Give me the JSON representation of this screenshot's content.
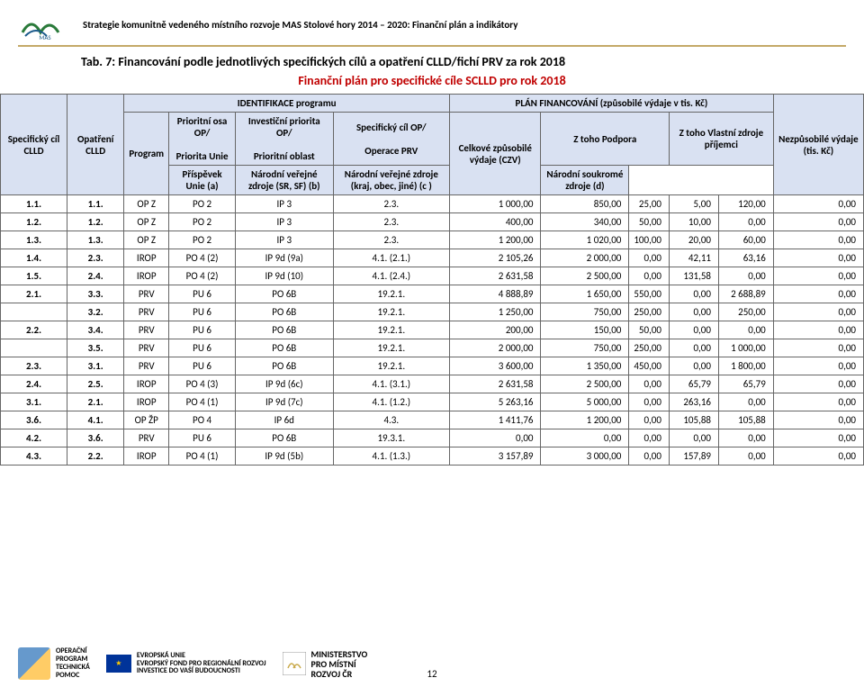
{
  "header": {
    "title_text": "Strategie komunitně vedeného místního rozvoje MAS Stolové hory 2014 – 2020: Finanční plán a indikátory"
  },
  "title": "Tab. 7: Financování podle jednotlivých specifických cílů a opatření CLLD/fichí PRV za rok 2018",
  "subtitle": "Finanční plán pro specifické cíle SCLLD pro rok 2018",
  "th": {
    "ident": "IDENTIFIKACE programu",
    "plan": "PLÁN FINANCOVÁNÍ (způsobilé výdaje v tis. Kč)",
    "sc": "Specifický cíl CLLD",
    "op": "Opatření CLLD",
    "prog": "Program",
    "posa": "Prioritní osa OP/",
    "prio": "Priorita Unie",
    "inv": "Investiční priorita OP/",
    "pobl": "Prioritní oblast",
    "spc": "Specifický cíl OP/",
    "oprv": "Operace PRV",
    "czv": "Celkové způsobilé výdaje (CZV)",
    "zpod": "Z toho Podpora",
    "zvlast": "Z toho Vlastní zdroje příjemci",
    "ua": "Příspěvek Unie (a)",
    "nvz": "Národní veřejné zdroje (SR, SF) (b)",
    "nvk": "Národní veřejné zdroje (kraj, obec, jiné) (c )",
    "nsz": "Národní soukromé zdroje (d)",
    "nez": "Nezpůsobilé výdaje (tis. Kč)"
  },
  "rows": [
    [
      "1.1.",
      "1.1.",
      "OP Z",
      "PO 2",
      "IP 3",
      "2.3.",
      "1 000,00",
      "850,00",
      "25,00",
      "5,00",
      "120,00",
      "0,00"
    ],
    [
      "1.2.",
      "1.2.",
      "OP Z",
      "PO 2",
      "IP 3",
      "2.3.",
      "400,00",
      "340,00",
      "50,00",
      "10,00",
      "0,00",
      "0,00"
    ],
    [
      "1.3.",
      "1.3.",
      "OP Z",
      "PO 2",
      "IP 3",
      "2.3.",
      "1 200,00",
      "1 020,00",
      "100,00",
      "20,00",
      "60,00",
      "0,00"
    ],
    [
      "1.4.",
      "2.3.",
      "IROP",
      "PO 4 (2)",
      "IP 9d (9a)",
      "4.1. (2.1.)",
      "2 105,26",
      "2 000,00",
      "0,00",
      "42,11",
      "63,16",
      "0,00"
    ],
    [
      "1.5.",
      "2.4.",
      "IROP",
      "PO 4 (2)",
      "IP 9d (10)",
      "4.1. (2.4.)",
      "2 631,58",
      "2 500,00",
      "0,00",
      "131,58",
      "0,00",
      "0,00"
    ],
    [
      "2.1.",
      "3.3.",
      "PRV",
      "PU 6",
      "PO 6B",
      "19.2.1.",
      "4 888,89",
      "1 650,00",
      "550,00",
      "0,00",
      "2 688,89",
      "0,00"
    ],
    [
      "",
      "3.2.",
      "PRV",
      "PU 6",
      "PO 6B",
      "19.2.1.",
      "1 250,00",
      "750,00",
      "250,00",
      "0,00",
      "250,00",
      "0,00"
    ],
    [
      "2.2.",
      "3.4.",
      "PRV",
      "PU 6",
      "PO 6B",
      "19.2.1.",
      "200,00",
      "150,00",
      "50,00",
      "0,00",
      "0,00",
      "0,00"
    ],
    [
      "",
      "3.5.",
      "PRV",
      "PU 6",
      "PO 6B",
      "19.2.1.",
      "2 000,00",
      "750,00",
      "250,00",
      "0,00",
      "1 000,00",
      "0,00"
    ],
    [
      "2.3.",
      "3.1.",
      "PRV",
      "PU 6",
      "PO 6B",
      "19.2.1.",
      "3 600,00",
      "1 350,00",
      "450,00",
      "0,00",
      "1 800,00",
      "0,00"
    ],
    [
      "2.4.",
      "2.5.",
      "IROP",
      "PO 4 (3)",
      "IP 9d (6c)",
      "4.1. (3.1.)",
      "2 631,58",
      "2 500,00",
      "0,00",
      "65,79",
      "65,79",
      "0,00"
    ],
    [
      "3.1.",
      "2.1.",
      "IROP",
      "PO 4 (1)",
      "IP 9d (7c)",
      "4.1. (1.2.)",
      "5 263,16",
      "5 000,00",
      "0,00",
      "263,16",
      "0,00",
      "0,00"
    ],
    [
      "3.6.",
      "4.1.",
      "OP ŽP",
      "PO 4",
      "IP 6d",
      "4.3.",
      "1 411,76",
      "1 200,00",
      "0,00",
      "105,88",
      "105,88",
      "0,00"
    ],
    [
      "4.2.",
      "3.6.",
      "PRV",
      "PU 6",
      "PO 6B",
      "19.3.1.",
      "0,00",
      "0,00",
      "0,00",
      "0,00",
      "0,00",
      "0,00"
    ],
    [
      "4.3.",
      "2.2.",
      "IROP",
      "PO 4 (1)",
      "IP 9d (5b)",
      "4.1. (1.3.)",
      "3 157,89",
      "3 000,00",
      "0,00",
      "157,89",
      "0,00",
      "0,00"
    ]
  ],
  "footer": {
    "op_label": "OPERAČNÍ\nPROGRAM\nTECHNICKÁ\nPOMOC",
    "eu_label": "EVROPSKÁ UNIE\nEVROPSKÝ FOND PRO REGIONÁLNÍ ROZVOJ\nINVESTICE DO VAŠÍ BUDOUCNOSTI",
    "mmr": "MINISTERSTVO\nPRO MÍSTNÍ\nROZVOJ ČR",
    "page": "12"
  },
  "colors": {
    "accent": "#c4a968",
    "header_bg": "#d9e1f2",
    "subtitle": "#c00000"
  }
}
